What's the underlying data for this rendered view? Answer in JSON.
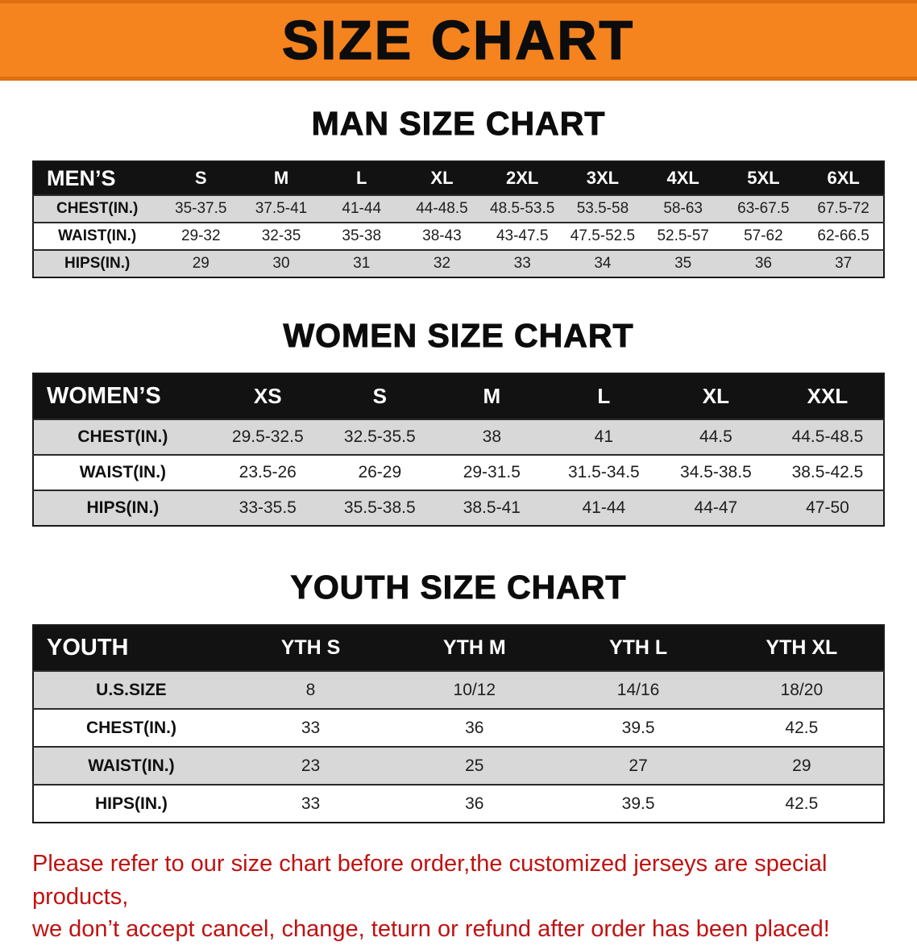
{
  "banner": {
    "title": "SIZE CHART"
  },
  "colors": {
    "banner_bg": "#f5831e",
    "table_header_bg": "#121212",
    "stripe_row_bg": "#d8d8d8",
    "disclaimer_text": "#c01212"
  },
  "sections": {
    "men": {
      "heading": "MAN SIZE CHART",
      "table": {
        "header": [
          "MEN’S",
          "S",
          "M",
          "L",
          "XL",
          "2XL",
          "3XL",
          "4XL",
          "5XL",
          "6XL"
        ],
        "rows": [
          [
            "CHEST(IN.)",
            "35-37.5",
            "37.5-41",
            "41-44",
            "44-48.5",
            "48.5-53.5",
            "53.5-58",
            "58-63",
            "63-67.5",
            "67.5-72"
          ],
          [
            "WAIST(IN.)",
            "29-32",
            "32-35",
            "35-38",
            "38-43",
            "43-47.5",
            "47.5-52.5",
            "52.5-57",
            "57-62",
            "62-66.5"
          ],
          [
            "HIPS(IN.)",
            "29",
            "30",
            "31",
            "32",
            "33",
            "34",
            "35",
            "36",
            "37"
          ]
        ]
      }
    },
    "women": {
      "heading": "WOMEN SIZE CHART",
      "table": {
        "header": [
          "WOMEN’S",
          "XS",
          "S",
          "M",
          "L",
          "XL",
          "XXL"
        ],
        "rows": [
          [
            "CHEST(IN.)",
            "29.5-32.5",
            "32.5-35.5",
            "38",
            "41",
            "44.5",
            "44.5-48.5"
          ],
          [
            "WAIST(IN.)",
            "23.5-26",
            "26-29",
            "29-31.5",
            "31.5-34.5",
            "34.5-38.5",
            "38.5-42.5"
          ],
          [
            "HIPS(IN.)",
            "33-35.5",
            "35.5-38.5",
            "38.5-41",
            "41-44",
            "44-47",
            "47-50"
          ]
        ]
      }
    },
    "youth": {
      "heading": "YOUTH SIZE CHART",
      "table": {
        "header": [
          "YOUTH",
          "YTH S",
          "YTH M",
          "YTH L",
          "YTH XL"
        ],
        "rows": [
          [
            "U.S.SIZE",
            "8",
            "10/12",
            "14/16",
            "18/20"
          ],
          [
            "CHEST(IN.)",
            "33",
            "36",
            "39.5",
            "42.5"
          ],
          [
            "WAIST(IN.)",
            "23",
            "25",
            "27",
            "29"
          ],
          [
            "HIPS(IN.)",
            "33",
            "36",
            "39.5",
            "42.5"
          ]
        ]
      }
    }
  },
  "disclaimer": {
    "line1": "Please refer to our size chart before order,the customized jerseys are special products,",
    "line2": "we don’t accept cancel, change, teturn or refund after order has been placed!"
  }
}
